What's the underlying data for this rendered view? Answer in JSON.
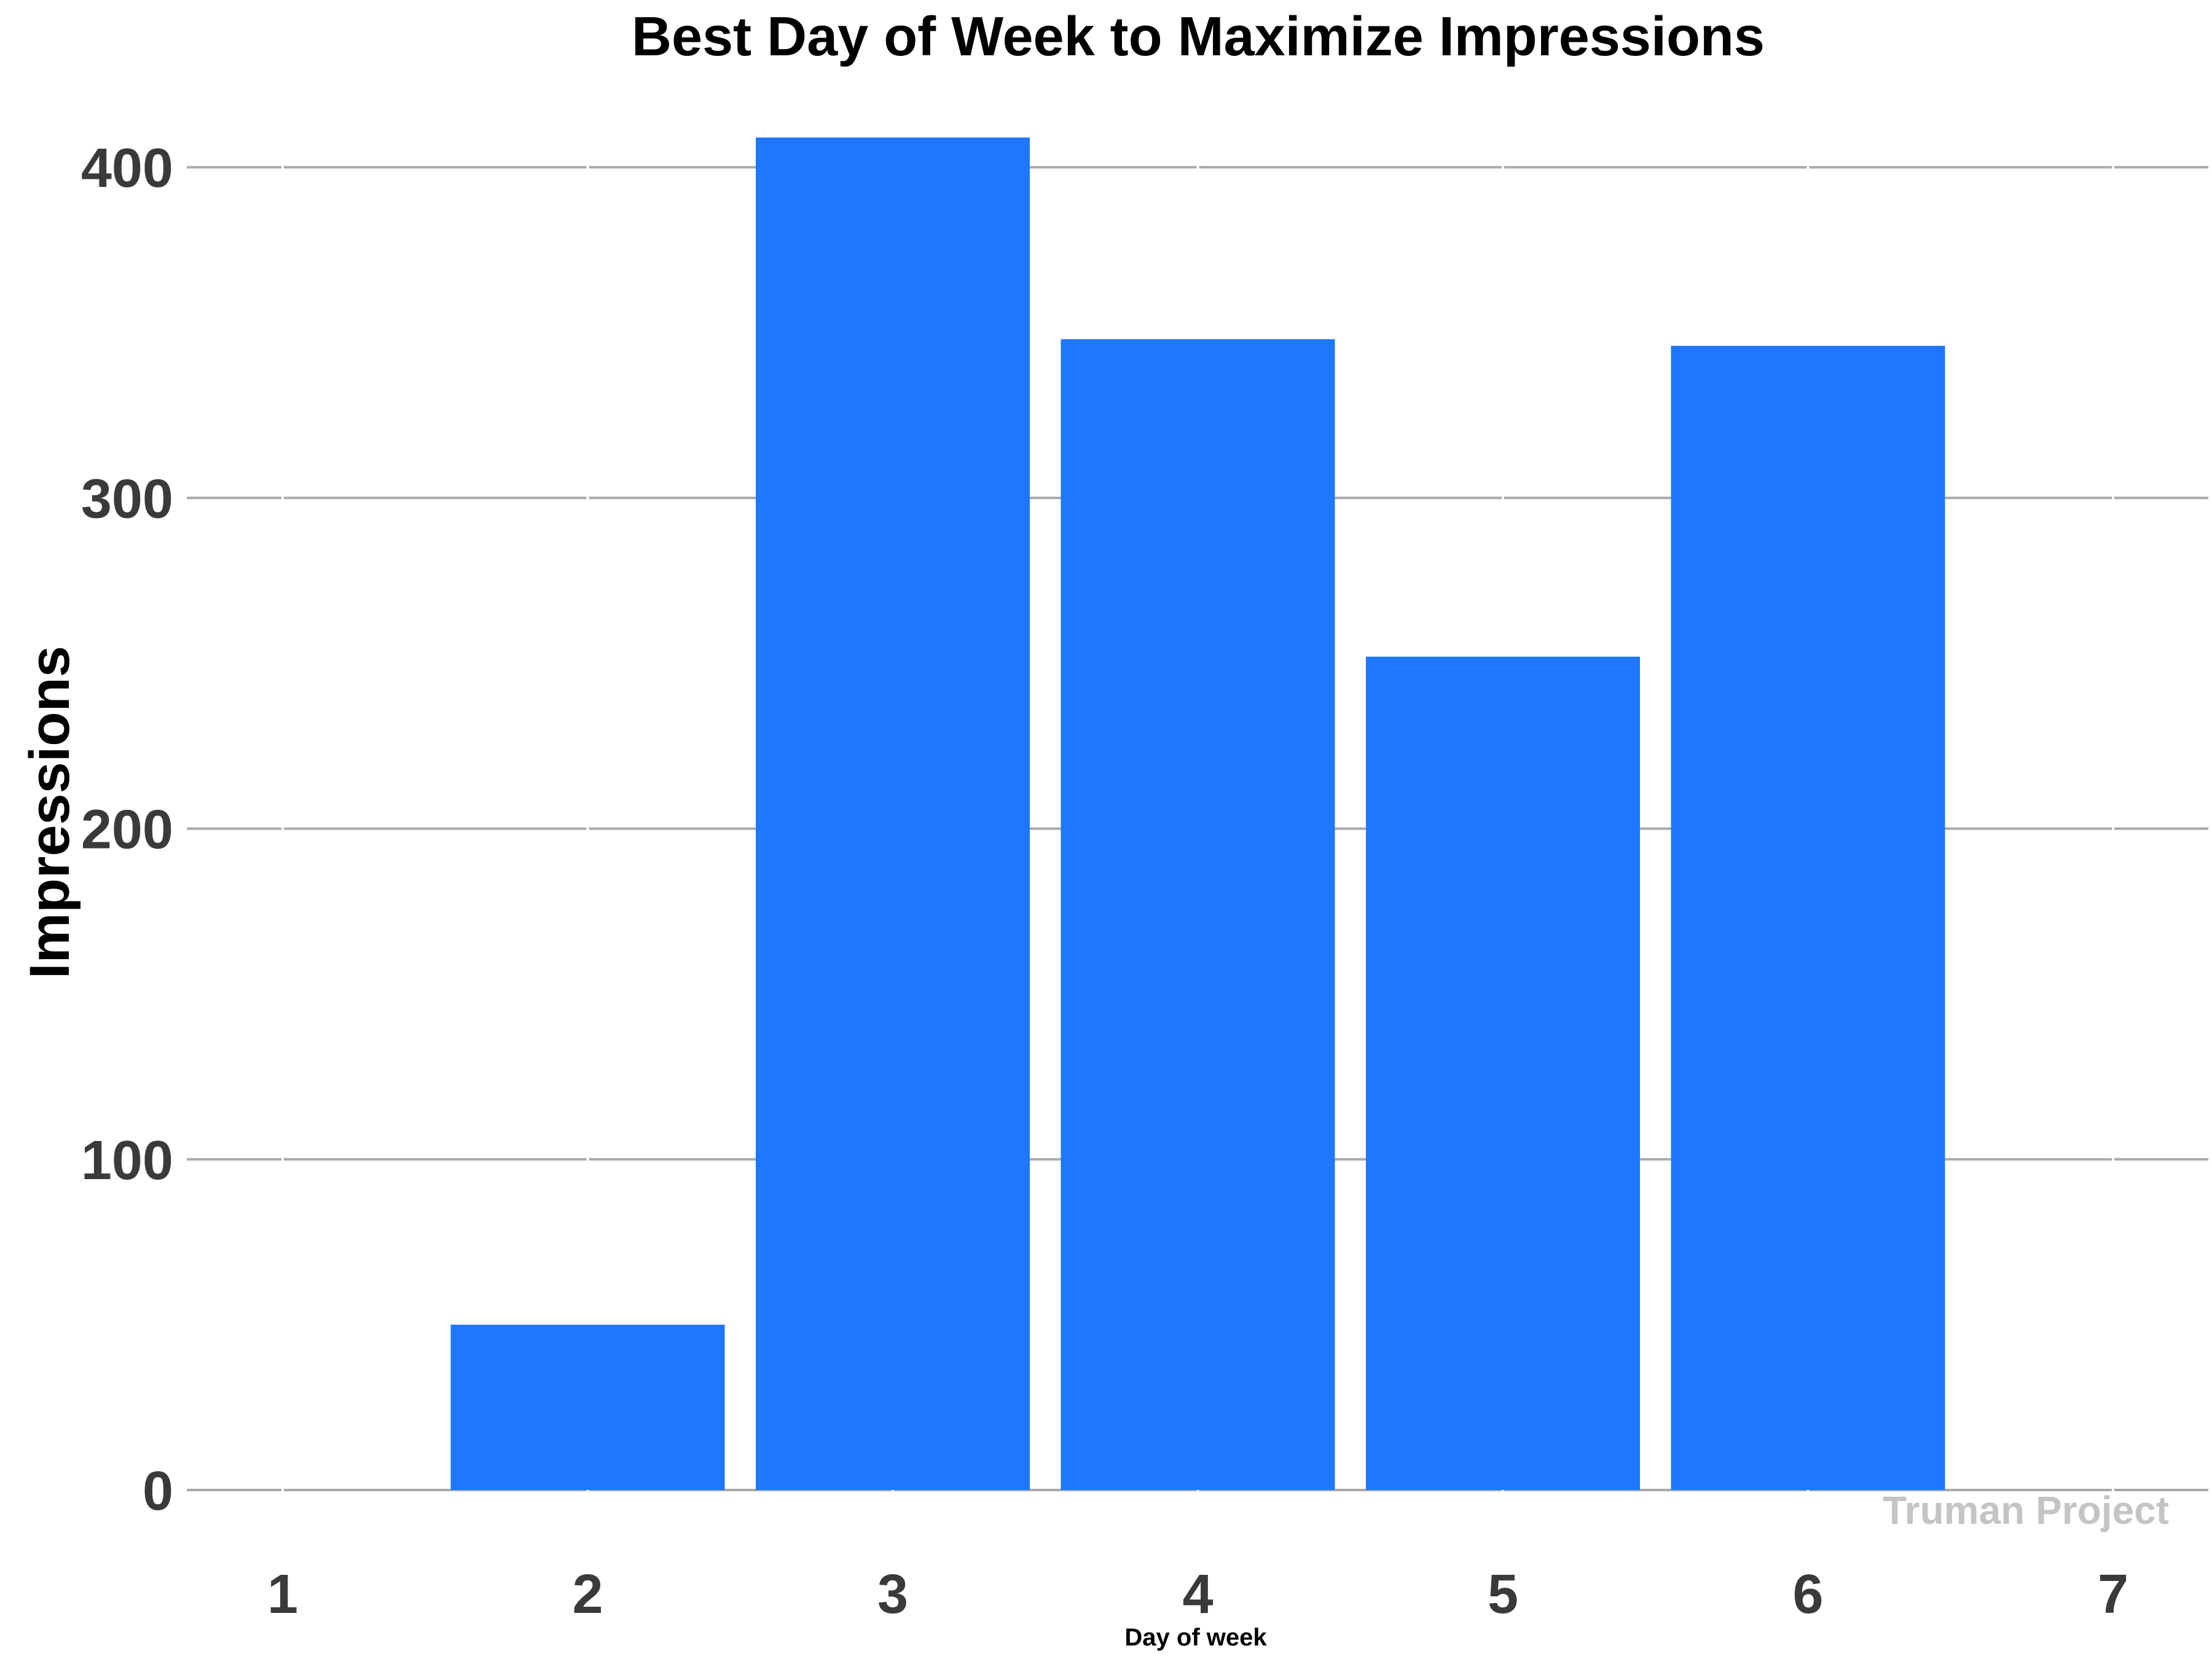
{
  "chart_data": {
    "type": "bar",
    "title": "Best Day of Week to Maximize Impressions",
    "xlabel": "Day of week",
    "ylabel": "Impressions",
    "categories": [
      "1",
      "2",
      "3",
      "4",
      "5",
      "6",
      "7"
    ],
    "values": [
      0,
      50,
      409,
      348,
      252,
      346,
      0
    ],
    "x_ticks": [
      "1",
      "2",
      "3",
      "4",
      "5",
      "6",
      "7"
    ],
    "y_ticks": [
      "0",
      "100",
      "200",
      "300",
      "400"
    ],
    "ylim": [
      0,
      420
    ],
    "grid": "horizontal",
    "legend": "none",
    "bar_color": "#1e78ff",
    "watermark": "Truman Project"
  }
}
